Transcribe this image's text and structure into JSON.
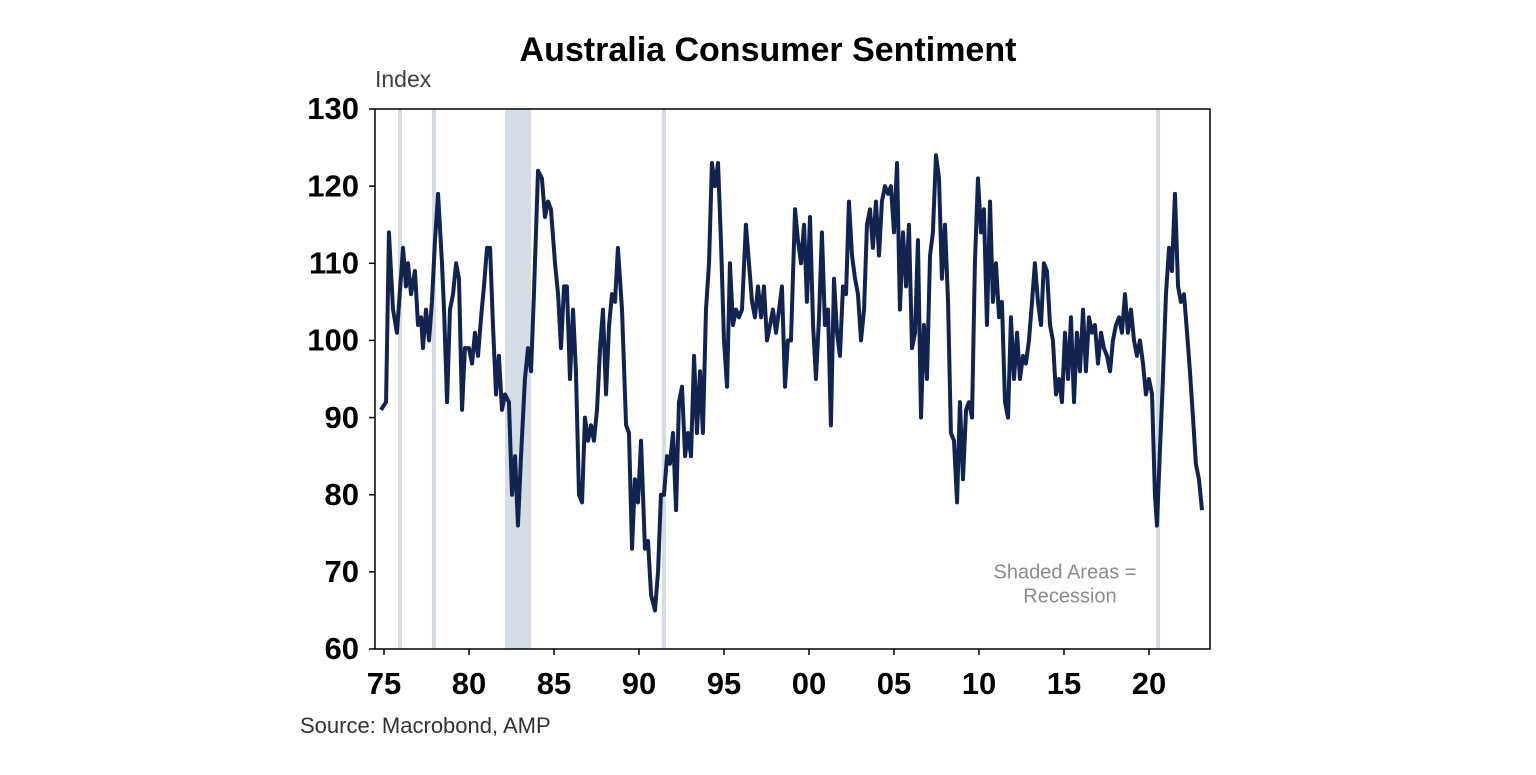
{
  "chart_data": {
    "type": "line",
    "title": "Australia Consumer Sentiment",
    "y_label": "Index",
    "source": "Source: Macrobond, AMP",
    "annotation": [
      "Shaded Areas =",
      "Recession"
    ],
    "xlim": [
      1974.47,
      2023.59
    ],
    "xticks": [
      {
        "value": 1975,
        "label": "75"
      },
      {
        "value": 1980,
        "label": "80"
      },
      {
        "value": 1985,
        "label": "85"
      },
      {
        "value": 1990,
        "label": "90"
      },
      {
        "value": 1995,
        "label": "95"
      },
      {
        "value": 2000,
        "label": "00"
      },
      {
        "value": 2005,
        "label": "05"
      },
      {
        "value": 2010,
        "label": "10"
      },
      {
        "value": 2015,
        "label": "15"
      },
      {
        "value": 2020,
        "label": "20"
      }
    ],
    "ylim": [
      60,
      130
    ],
    "yticks": [
      60,
      70,
      80,
      90,
      100,
      110,
      120,
      130
    ],
    "grid": false,
    "recession_color": "#d6dce5",
    "recessions": [
      [
        1975.82,
        1976.06
      ],
      [
        1977.82,
        1978.06
      ],
      [
        1982.12,
        1983.65
      ],
      [
        1991.35,
        1991.59
      ],
      [
        2020.41,
        2020.65
      ]
    ],
    "x": [
      1974.82,
      1975.12,
      1975.29,
      1975.53,
      1975.76,
      1976.12,
      1976.29,
      1976.41,
      1976.59,
      1976.82,
      1977.0,
      1977.18,
      1977.29,
      1977.47,
      1977.65,
      1977.82,
      1978.0,
      1978.18,
      1978.41,
      1978.53,
      1978.71,
      1978.88,
      1979.06,
      1979.24,
      1979.41,
      1979.59,
      1979.76,
      1980.0,
      1980.18,
      1980.35,
      1980.53,
      1980.71,
      1980.88,
      1981.06,
      1981.24,
      1981.41,
      1981.59,
      1981.76,
      1981.94,
      1982.12,
      1982.35,
      1982.53,
      1982.71,
      1982.88,
      1983.06,
      1983.29,
      1983.47,
      1983.65,
      1983.82,
      1984.06,
      1984.29,
      1984.47,
      1984.65,
      1984.82,
      1985.06,
      1985.24,
      1985.41,
      1985.59,
      1985.76,
      1985.94,
      1986.12,
      1986.29,
      1986.47,
      1986.65,
      1986.82,
      1987.0,
      1987.18,
      1987.35,
      1987.53,
      1987.71,
      1987.88,
      1988.06,
      1988.24,
      1988.41,
      1988.59,
      1988.76,
      1989.0,
      1989.24,
      1989.41,
      1989.59,
      1989.76,
      1989.94,
      1990.12,
      1990.35,
      1990.53,
      1990.71,
      1990.94,
      1991.12,
      1991.29,
      1991.47,
      1991.65,
      1991.82,
      1992.0,
      1992.18,
      1992.35,
      1992.53,
      1992.71,
      1992.88,
      1993.06,
      1993.24,
      1993.41,
      1993.59,
      1993.76,
      1993.94,
      1994.12,
      1994.29,
      1994.47,
      1994.65,
      1994.82,
      1995.0,
      1995.18,
      1995.35,
      1995.53,
      1995.71,
      1995.88,
      1996.06,
      1996.29,
      1996.47,
      1996.65,
      1996.82,
      1997.0,
      1997.18,
      1997.35,
      1997.53,
      1997.71,
      1997.88,
      1998.06,
      1998.24,
      1998.41,
      1998.59,
      1998.76,
      1998.94,
      1999.18,
      1999.35,
      1999.53,
      1999.71,
      1999.88,
      2000.06,
      2000.24,
      2000.41,
      2000.59,
      2000.76,
      2000.94,
      2001.12,
      2001.29,
      2001.47,
      2001.65,
      2001.82,
      2002.0,
      2002.18,
      2002.35,
      2002.53,
      2002.71,
      2002.88,
      2003.06,
      2003.24,
      2003.41,
      2003.59,
      2003.76,
      2003.94,
      2004.12,
      2004.29,
      2004.47,
      2004.65,
      2004.82,
      2005.0,
      2005.18,
      2005.35,
      2005.53,
      2005.71,
      2005.88,
      2006.06,
      2006.24,
      2006.41,
      2006.59,
      2006.76,
      2006.94,
      2007.12,
      2007.29,
      2007.47,
      2007.65,
      2007.82,
      2008.0,
      2008.18,
      2008.35,
      2008.53,
      2008.71,
      2008.88,
      2009.06,
      2009.24,
      2009.41,
      2009.59,
      2009.76,
      2009.94,
      2010.12,
      2010.29,
      2010.47,
      2010.65,
      2010.82,
      2011.0,
      2011.18,
      2011.35,
      2011.53,
      2011.71,
      2011.88,
      2012.06,
      2012.24,
      2012.41,
      2012.59,
      2012.76,
      2012.94,
      2013.12,
      2013.29,
      2013.47,
      2013.65,
      2013.82,
      2014.0,
      2014.18,
      2014.35,
      2014.53,
      2014.71,
      2014.88,
      2015.06,
      2015.24,
      2015.41,
      2015.59,
      2015.76,
      2015.94,
      2016.12,
      2016.29,
      2016.47,
      2016.65,
      2016.82,
      2017.0,
      2017.18,
      2017.35,
      2017.53,
      2017.71,
      2017.88,
      2018.06,
      2018.24,
      2018.41,
      2018.59,
      2018.76,
      2018.94,
      2019.12,
      2019.29,
      2019.47,
      2019.65,
      2019.82,
      2020.0,
      2020.18,
      2020.35,
      2020.47,
      2020.65,
      2020.82,
      2021.0,
      2021.18,
      2021.35,
      2021.53,
      2021.71,
      2021.88,
      2022.06,
      2022.24,
      2022.41,
      2022.59,
      2022.76,
      2022.94,
      2023.12
    ],
    "series": [
      {
        "color": "#13234f",
        "values": [
          91,
          92,
          114,
          104,
          101,
          112,
          107,
          110,
          106,
          109,
          102,
          103,
          99,
          104,
          100,
          105,
          113,
          119,
          110,
          104,
          92,
          104,
          106,
          110,
          108,
          91,
          99,
          99,
          97,
          101,
          98,
          103,
          107,
          112,
          112,
          102,
          93,
          98,
          91,
          93,
          92,
          80,
          85,
          76,
          85,
          95,
          99,
          96,
          106,
          122,
          121,
          116,
          118,
          117,
          110,
          106,
          99,
          107,
          107,
          95,
          104,
          96,
          80,
          79,
          90,
          87,
          89,
          87,
          91,
          99,
          104,
          93,
          102,
          106,
          105,
          112,
          104,
          89,
          88,
          73,
          82,
          79,
          87,
          73,
          74,
          67,
          65,
          70,
          80,
          80,
          85,
          84,
          88,
          78,
          92,
          94,
          85,
          88,
          85,
          98,
          88,
          96,
          88,
          104,
          110,
          123,
          120,
          123,
          113,
          100,
          94,
          110,
          102,
          104,
          103,
          104,
          115,
          110,
          105,
          103,
          107,
          103,
          107,
          100,
          102,
          104,
          101,
          104,
          107,
          94,
          100,
          100,
          117,
          113,
          110,
          115,
          105,
          116,
          102,
          95,
          103,
          114,
          102,
          104,
          89,
          108,
          101,
          98,
          107,
          106,
          118,
          111,
          108,
          106,
          100,
          104,
          115,
          117,
          112,
          118,
          111,
          118,
          120,
          119,
          120,
          114,
          123,
          104,
          114,
          107,
          115,
          99,
          101,
          113,
          90,
          102,
          95,
          111,
          114,
          124,
          121,
          108,
          115,
          105,
          88,
          87,
          79,
          92,
          82,
          91,
          92,
          90,
          110,
          121,
          114,
          117,
          102,
          118,
          105,
          110,
          103,
          105,
          92,
          90,
          103,
          95,
          101,
          95,
          98,
          97,
          100,
          105,
          110,
          105,
          102,
          110,
          109,
          102,
          100,
          93,
          95,
          92,
          101,
          95,
          103,
          92,
          101,
          96,
          104,
          96,
          103,
          101,
          102,
          97,
          101,
          99,
          98,
          96,
          100,
          102,
          103,
          101,
          106,
          101,
          104,
          100,
          98,
          100,
          97,
          93,
          95,
          93,
          80,
          76,
          86,
          95,
          106,
          112,
          109,
          119,
          107,
          105,
          106,
          101,
          96,
          90,
          84,
          82,
          78
        ]
      }
    ]
  }
}
